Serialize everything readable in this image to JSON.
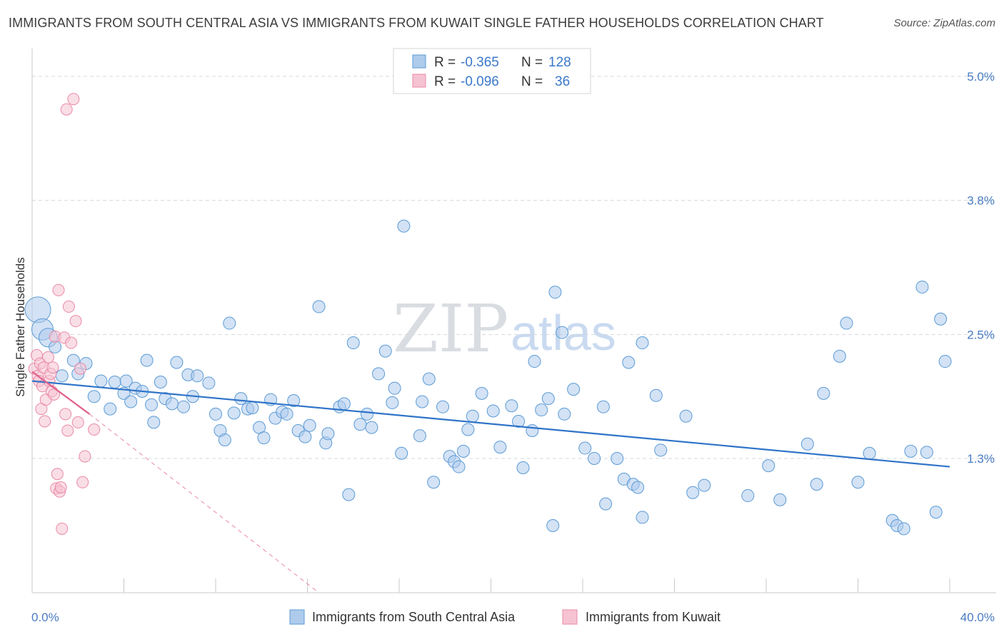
{
  "header": {
    "title": "IMMIGRANTS FROM SOUTH CENTRAL ASIA VS IMMIGRANTS FROM KUWAIT SINGLE FATHER HOUSEHOLDS CORRELATION CHART",
    "source": "Source: ZipAtlas.com"
  },
  "legend_box": {
    "rows": [
      {
        "r_label": "R =",
        "r_value": "-0.365",
        "n_label": "N =",
        "n_value": "128"
      },
      {
        "r_label": "R =",
        "r_value": "-0.096",
        "n_label": "N =",
        "n_value": "36"
      }
    ]
  },
  "bottom_legend": {
    "items": [
      "Immigrants from South Central Asia",
      "Immigrants from Kuwait"
    ]
  },
  "watermark": {
    "zip": "ZIP",
    "atlas": "atlas"
  },
  "chart_data": {
    "type": "scatter",
    "title": "IMMIGRANTS FROM SOUTH CENTRAL ASIA VS IMMIGRANTS FROM KUWAIT SINGLE FATHER HOUSEHOLDS CORRELATION CHART",
    "ylabel": "Single Father Households",
    "xlabel": "",
    "x_unit": "%",
    "y_unit": "%",
    "xlim": [
      0,
      40
    ],
    "ylim": [
      0,
      5.2
    ],
    "x_tick_labels": [
      "0.0%",
      "40.0%"
    ],
    "y_ticks": [
      1.3,
      2.5,
      3.8,
      5.0
    ],
    "y_tick_labels": [
      "1.3%",
      "2.5%",
      "3.8%",
      "5.0%"
    ],
    "grid": true,
    "legend_position": "top-center",
    "colors": {
      "south_central_asia": "#5b9bd5",
      "south_central_asia_fill": "#aecbec",
      "south_central_asia_line": "#2f74c8",
      "kuwait": "#e98aa6",
      "kuwait_fill": "#f6c3d2",
      "kuwait_line": "#e0628a",
      "axis_text": "#4a7cc2",
      "grid": "#d6d9dd"
    },
    "series": [
      {
        "name": "Immigrants from South Central Asia",
        "r": -0.365,
        "n": 128,
        "trend": {
          "x": [
            0,
            40
          ],
          "y": [
            2.05,
            1.22
          ]
        },
        "points": [
          [
            0.25,
            2.74
          ],
          [
            0.45,
            2.55
          ],
          [
            0.7,
            2.47
          ],
          [
            1.0,
            2.38
          ],
          [
            1.3,
            2.1
          ],
          [
            1.8,
            2.25
          ],
          [
            2.0,
            2.12
          ],
          [
            2.35,
            2.22
          ],
          [
            2.7,
            1.9
          ],
          [
            3.0,
            2.05
          ],
          [
            3.4,
            1.78
          ],
          [
            3.6,
            2.04
          ],
          [
            4.0,
            1.93
          ],
          [
            4.1,
            2.05
          ],
          [
            4.3,
            1.85
          ],
          [
            4.5,
            1.98
          ],
          [
            4.8,
            1.95
          ],
          [
            5.0,
            2.25
          ],
          [
            5.2,
            1.82
          ],
          [
            5.3,
            1.65
          ],
          [
            5.6,
            2.04
          ],
          [
            5.8,
            1.88
          ],
          [
            6.1,
            1.83
          ],
          [
            6.3,
            2.23
          ],
          [
            6.6,
            1.8
          ],
          [
            6.8,
            2.11
          ],
          [
            7.0,
            1.9
          ],
          [
            7.2,
            2.1
          ],
          [
            7.7,
            2.03
          ],
          [
            8.0,
            1.73
          ],
          [
            8.2,
            1.57
          ],
          [
            8.4,
            1.48
          ],
          [
            8.6,
            2.61
          ],
          [
            8.8,
            1.74
          ],
          [
            9.1,
            1.88
          ],
          [
            9.4,
            1.78
          ],
          [
            9.6,
            1.79
          ],
          [
            9.9,
            1.6
          ],
          [
            10.1,
            1.5
          ],
          [
            10.4,
            1.87
          ],
          [
            10.6,
            1.69
          ],
          [
            10.9,
            1.75
          ],
          [
            11.1,
            1.73
          ],
          [
            11.4,
            1.86
          ],
          [
            11.6,
            1.57
          ],
          [
            11.9,
            1.51
          ],
          [
            12.1,
            1.62
          ],
          [
            12.5,
            2.77
          ],
          [
            12.8,
            1.45
          ],
          [
            12.9,
            1.54
          ],
          [
            13.4,
            1.8
          ],
          [
            13.6,
            1.83
          ],
          [
            13.8,
            0.95
          ],
          [
            14.0,
            2.42
          ],
          [
            14.3,
            1.63
          ],
          [
            14.6,
            1.73
          ],
          [
            14.8,
            1.6
          ],
          [
            15.1,
            2.12
          ],
          [
            15.4,
            2.34
          ],
          [
            15.8,
            1.98
          ],
          [
            15.7,
            1.84
          ],
          [
            16.1,
            1.35
          ],
          [
            16.2,
            3.55
          ],
          [
            16.9,
            1.52
          ],
          [
            17.0,
            1.85
          ],
          [
            17.3,
            2.07
          ],
          [
            17.5,
            1.07
          ],
          [
            17.9,
            1.8
          ],
          [
            18.2,
            1.32
          ],
          [
            18.4,
            1.27
          ],
          [
            18.6,
            1.22
          ],
          [
            18.8,
            1.37
          ],
          [
            19.0,
            1.58
          ],
          [
            19.2,
            1.71
          ],
          [
            19.6,
            1.93
          ],
          [
            20.1,
            1.76
          ],
          [
            20.4,
            1.41
          ],
          [
            20.9,
            1.81
          ],
          [
            21.2,
            1.66
          ],
          [
            21.4,
            1.21
          ],
          [
            21.8,
            1.57
          ],
          [
            21.9,
            2.24
          ],
          [
            22.2,
            1.77
          ],
          [
            22.5,
            1.88
          ],
          [
            22.7,
            0.65
          ],
          [
            22.8,
            2.91
          ],
          [
            23.1,
            2.52
          ],
          [
            23.2,
            1.73
          ],
          [
            23.6,
            1.97
          ],
          [
            24.1,
            1.4
          ],
          [
            24.5,
            1.3
          ],
          [
            24.9,
            1.8
          ],
          [
            25.0,
            0.86
          ],
          [
            25.5,
            1.3
          ],
          [
            25.8,
            1.1
          ],
          [
            26.0,
            2.23
          ],
          [
            26.2,
            1.05
          ],
          [
            26.4,
            1.02
          ],
          [
            26.6,
            2.42
          ],
          [
            26.6,
            0.73
          ],
          [
            27.2,
            1.91
          ],
          [
            27.4,
            1.38
          ],
          [
            28.5,
            1.71
          ],
          [
            28.8,
            0.97
          ],
          [
            29.3,
            1.04
          ],
          [
            31.2,
            0.94
          ],
          [
            32.1,
            1.23
          ],
          [
            32.6,
            0.9
          ],
          [
            33.8,
            1.44
          ],
          [
            34.2,
            1.05
          ],
          [
            34.5,
            1.93
          ],
          [
            35.2,
            2.29
          ],
          [
            35.5,
            2.61
          ],
          [
            36.0,
            1.07
          ],
          [
            36.5,
            1.35
          ],
          [
            37.5,
            0.7
          ],
          [
            37.7,
            0.65
          ],
          [
            38.0,
            0.62
          ],
          [
            38.3,
            1.37
          ],
          [
            38.8,
            2.96
          ],
          [
            39.0,
            1.36
          ],
          [
            39.4,
            0.78
          ],
          [
            39.6,
            2.65
          ],
          [
            39.8,
            2.24
          ]
        ]
      },
      {
        "name": "Immigrants from Kuwait",
        "r": -0.096,
        "n": 36,
        "trend_solid": {
          "x": [
            0,
            2.5
          ],
          "y": [
            2.14,
            1.73
          ]
        },
        "trend_dashed": {
          "x": [
            2.5,
            12.5
          ],
          "y": [
            1.73,
            0.0
          ]
        },
        "points": [
          [
            0.1,
            2.17
          ],
          [
            0.2,
            2.3
          ],
          [
            0.25,
            2.1
          ],
          [
            0.3,
            2.05
          ],
          [
            0.35,
            2.22
          ],
          [
            0.4,
            1.78
          ],
          [
            0.45,
            2.0
          ],
          [
            0.5,
            2.18
          ],
          [
            0.55,
            1.66
          ],
          [
            0.6,
            1.87
          ],
          [
            0.7,
            2.28
          ],
          [
            0.75,
            2.05
          ],
          [
            0.8,
            2.12
          ],
          [
            0.85,
            1.95
          ],
          [
            0.9,
            2.18
          ],
          [
            0.95,
            1.92
          ],
          [
            1.0,
            2.48
          ],
          [
            1.05,
            1.01
          ],
          [
            1.1,
            1.15
          ],
          [
            1.15,
            2.93
          ],
          [
            1.2,
            0.98
          ],
          [
            1.25,
            1.02
          ],
          [
            1.3,
            0.62
          ],
          [
            1.4,
            2.47
          ],
          [
            1.45,
            1.73
          ],
          [
            1.5,
            4.68
          ],
          [
            1.55,
            1.57
          ],
          [
            1.6,
            2.77
          ],
          [
            1.7,
            2.42
          ],
          [
            1.8,
            4.78
          ],
          [
            1.9,
            2.63
          ],
          [
            2.0,
            1.65
          ],
          [
            2.1,
            2.17
          ],
          [
            2.2,
            1.07
          ],
          [
            2.3,
            1.32
          ],
          [
            2.7,
            1.58
          ]
        ]
      }
    ]
  }
}
